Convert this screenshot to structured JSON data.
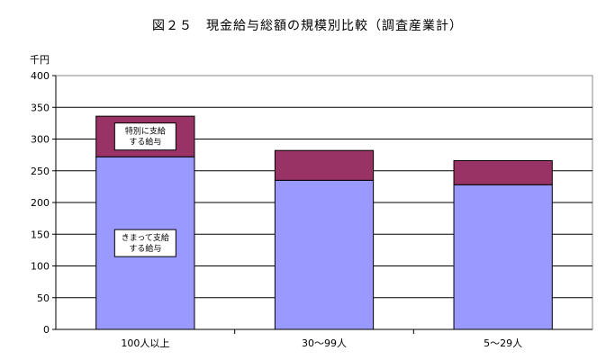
{
  "chart_data": {
    "type": "bar",
    "stacked": true,
    "title": "図２５　現金給与総額の規模別比較（調査産業計）",
    "ylabel": "千円",
    "ylim": [
      0,
      400
    ],
    "yticks": [
      0,
      50,
      100,
      150,
      200,
      250,
      300,
      350,
      400
    ],
    "grid": true,
    "categories": [
      "100人以上",
      "30〜99人",
      "5〜29人"
    ],
    "series": [
      {
        "name": "きまって支給する給与",
        "values": [
          272,
          235,
          228
        ],
        "color": "#9999ff"
      },
      {
        "name": "特別に支給する給与",
        "values": [
          64,
          47,
          38
        ],
        "color": "#993366"
      }
    ],
    "annotations": [
      {
        "lines": [
          "特別に支給",
          "する給与"
        ],
        "series": 1
      },
      {
        "lines": [
          "きまって支給",
          "する給与"
        ],
        "series": 0
      }
    ]
  }
}
